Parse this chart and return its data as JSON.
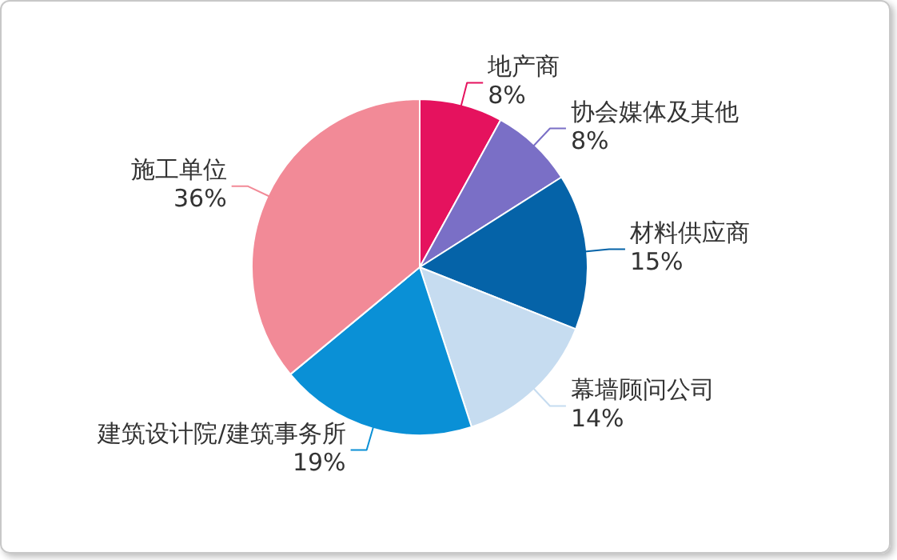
{
  "chart_data": {
    "type": "pie",
    "categories": [
      "地产商",
      "协会媒体及其他",
      "材料供应商",
      "幕墙顾问公司",
      "建筑设计院/建筑事务所",
      "施工单位"
    ],
    "values": [
      8,
      8,
      15,
      14,
      19,
      36
    ],
    "value_labels": [
      "8%",
      "8%",
      "15%",
      "14%",
      "19%",
      "36%"
    ],
    "colors": [
      "#e5125e",
      "#7a6fc6",
      "#0563a8",
      "#c6dcf0",
      "#0a90d6",
      "#f28a97"
    ],
    "legend": false
  }
}
